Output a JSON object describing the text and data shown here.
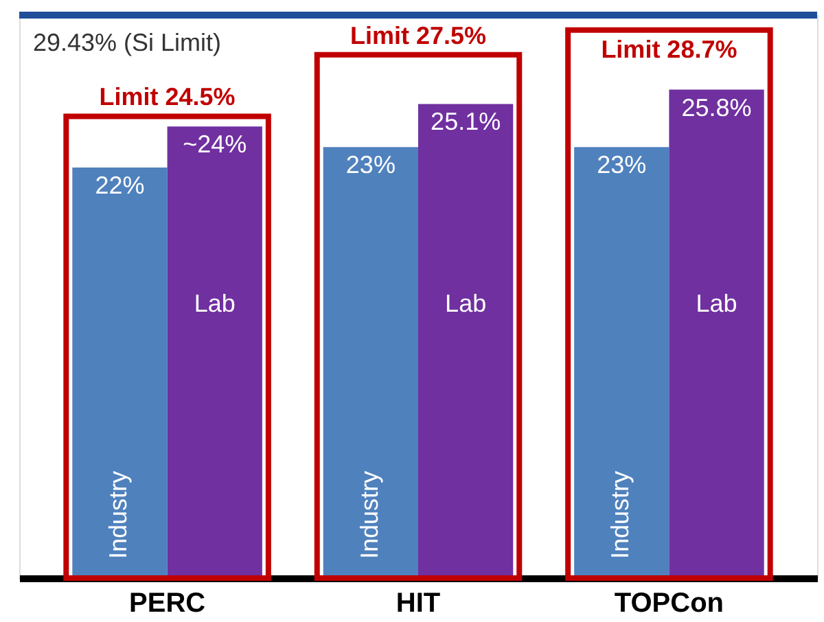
{
  "chart_data": {
    "type": "bar",
    "categories": [
      "PERC",
      "HIT",
      "TOPCon"
    ],
    "series": [
      {
        "name": "Industry",
        "color": "#4f81bd",
        "values": [
          22,
          23,
          23
        ],
        "value_labels": [
          "22%",
          "23%",
          "23%"
        ]
      },
      {
        "name": "Lab",
        "color": "#7030a0",
        "values": [
          24,
          25.1,
          25.8
        ],
        "value_labels": [
          "~24%",
          "25.1%",
          "25.8%"
        ]
      },
      {
        "type": "bar",
        "color": "#c00000",
        "values": [
          24.5,
          27.5,
          28.7
        ],
        "value_labels": [
          "Limit 24.5%",
          "Limit 27.5%",
          "Limit 28.7%"
        ]
      }
    ],
    "ylim": [
      2,
      29.43
    ],
    "tick_labels": "x",
    "ref_lines": [
      {
        "axis": "y",
        "value": 29.43,
        "label": "29.43% (Si Limit)",
        "color": "#1f4e9a"
      }
    ]
  }
}
